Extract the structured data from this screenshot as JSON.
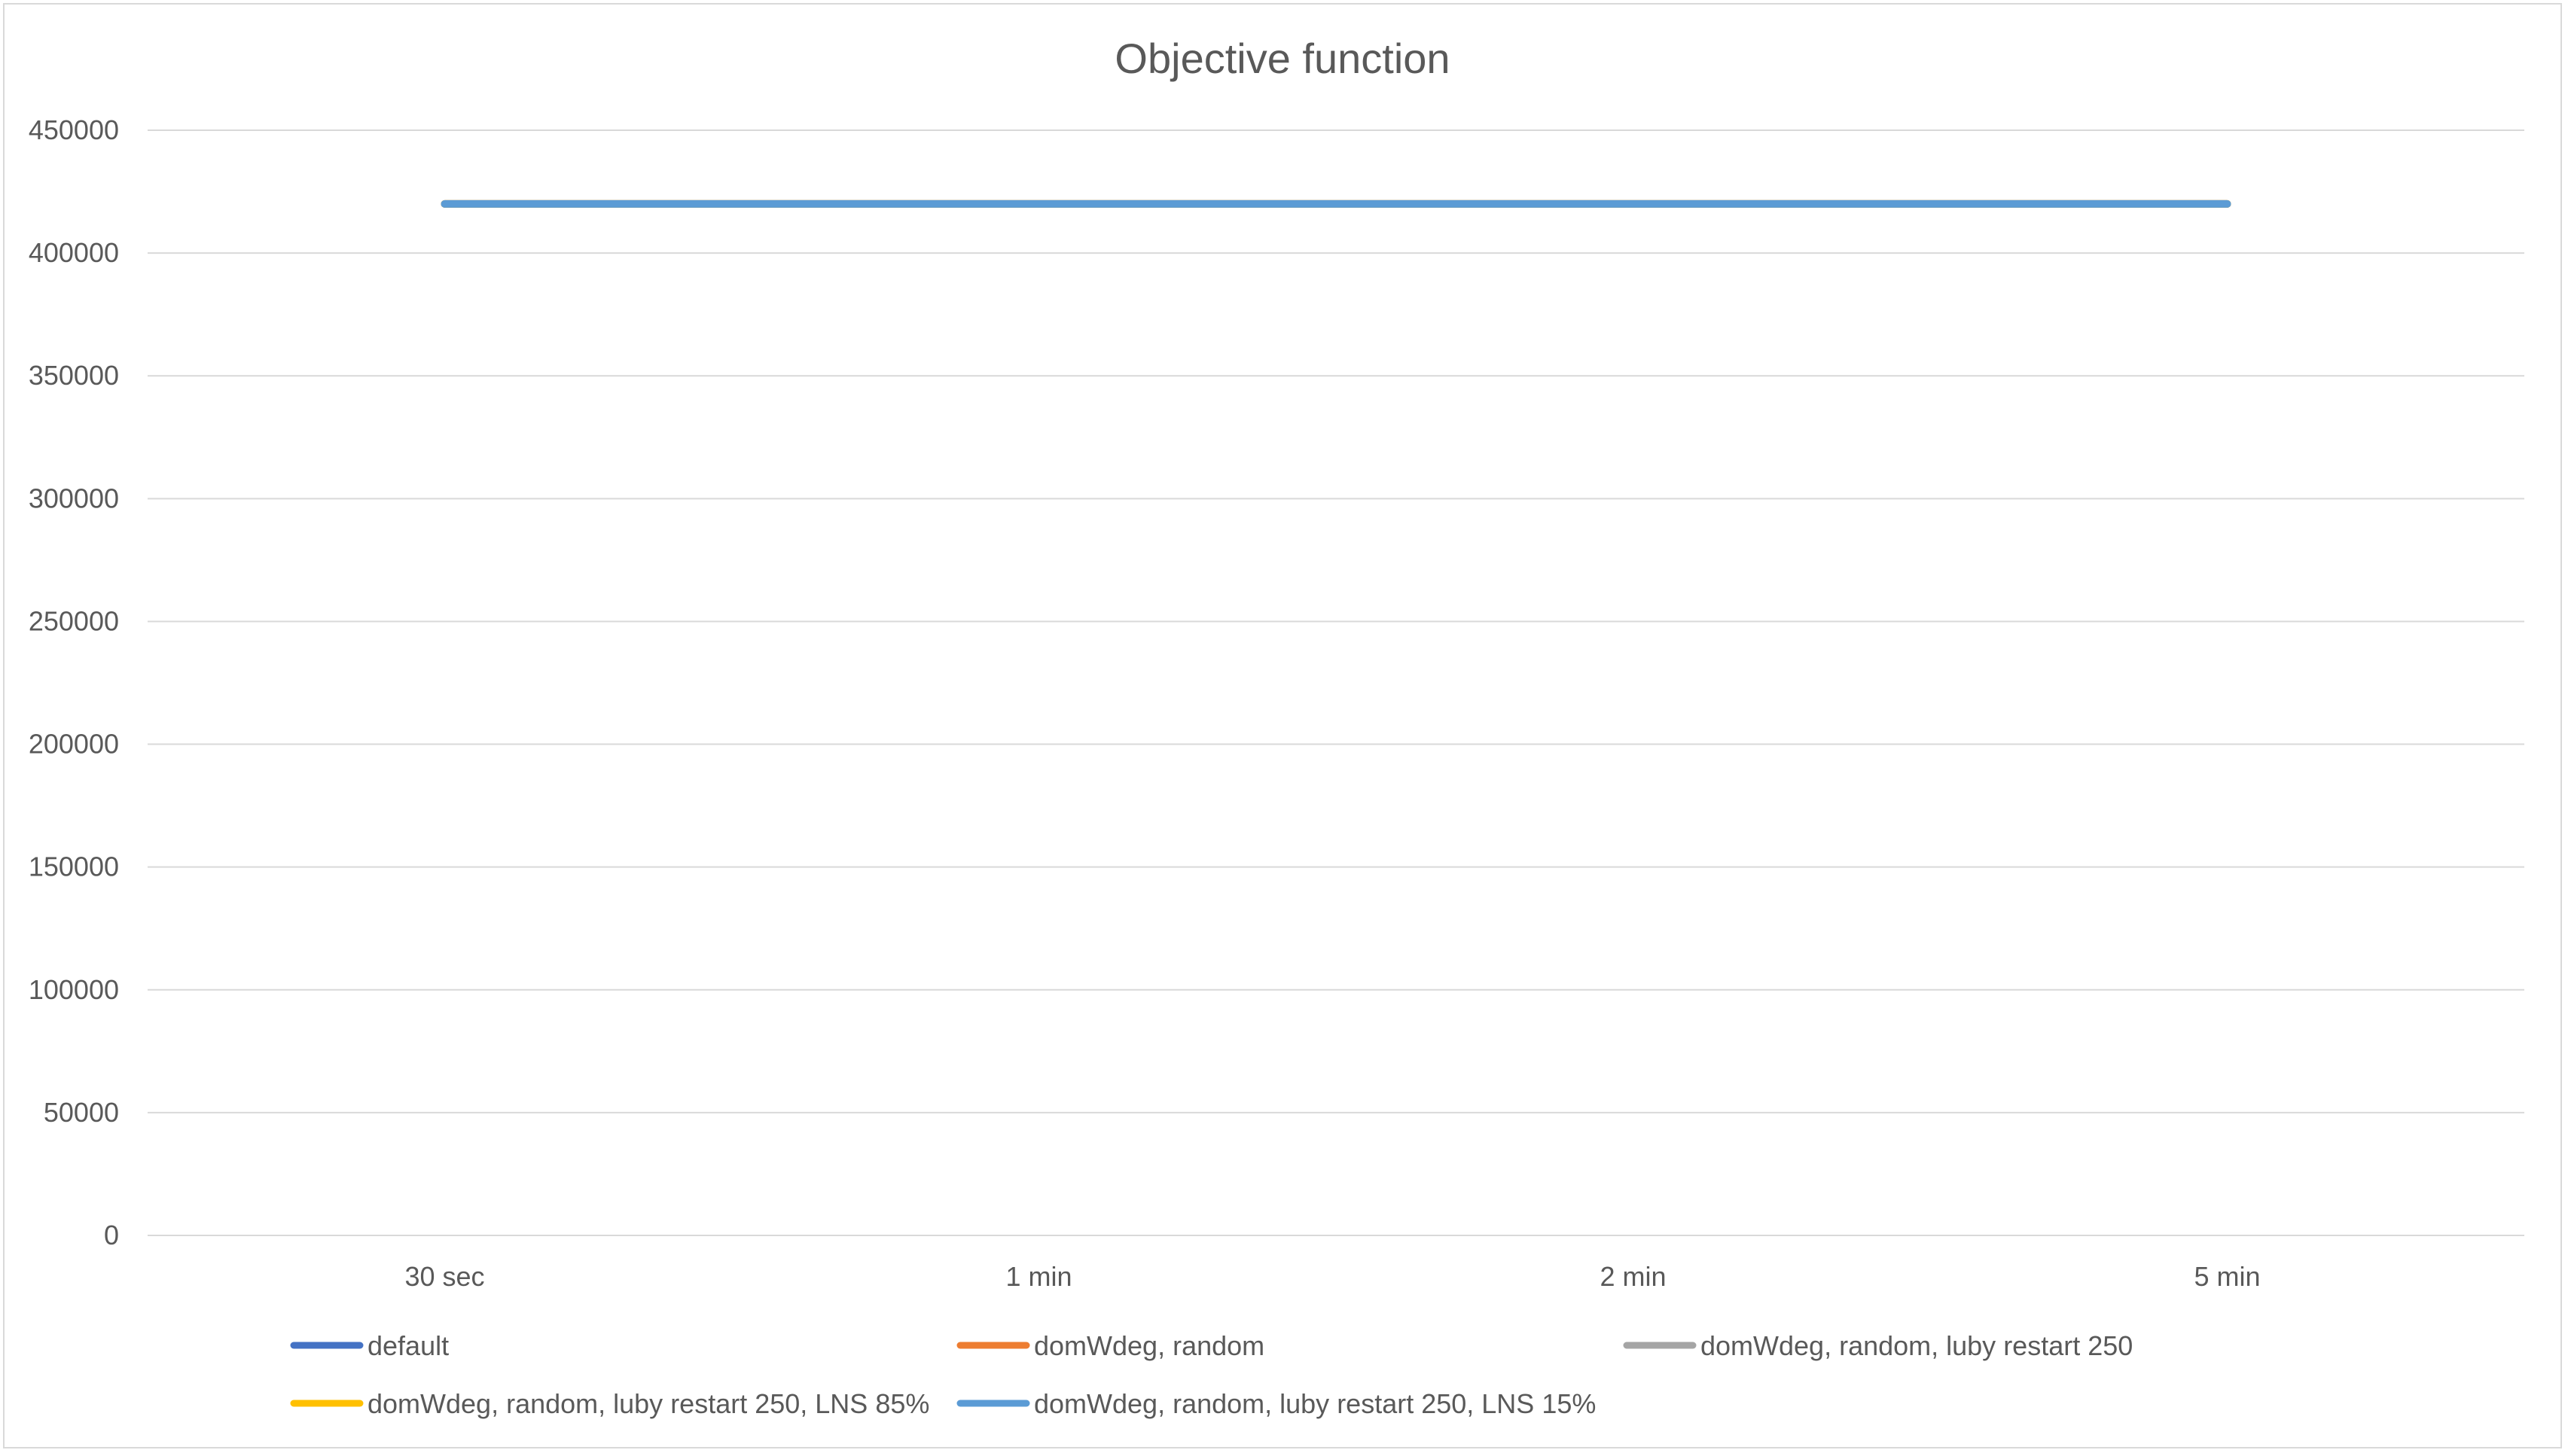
{
  "chart_data": {
    "type": "line",
    "title": "Objective function",
    "xlabel": "",
    "ylabel": "",
    "categories": [
      "30 sec",
      "1 min",
      "2 min",
      "5 min"
    ],
    "ylim": [
      0,
      450000
    ],
    "yticks": [
      0,
      50000,
      100000,
      150000,
      200000,
      250000,
      300000,
      350000,
      400000,
      450000
    ],
    "grid": true,
    "legend_position": "bottom",
    "series": [
      {
        "name": "default",
        "color": "#4472C4",
        "values": [
          420000,
          420000,
          420000,
          420000
        ]
      },
      {
        "name": "domWdeg, random",
        "color": "#ED7D31",
        "values": [
          420000,
          420000,
          420000,
          420000
        ]
      },
      {
        "name": "domWdeg, random, luby restart 250",
        "color": "#A5A5A5",
        "values": [
          420000,
          420000,
          420000,
          420000
        ]
      },
      {
        "name": "domWdeg, random, luby restart 250, LNS 85%",
        "color": "#FFC000",
        "values": [
          420000,
          420000,
          420000,
          420000
        ]
      },
      {
        "name": "domWdeg, random, luby restart 250, LNS 15%",
        "color": "#5B9BD5",
        "values": [
          420000,
          420000,
          420000,
          420000
        ]
      }
    ]
  }
}
